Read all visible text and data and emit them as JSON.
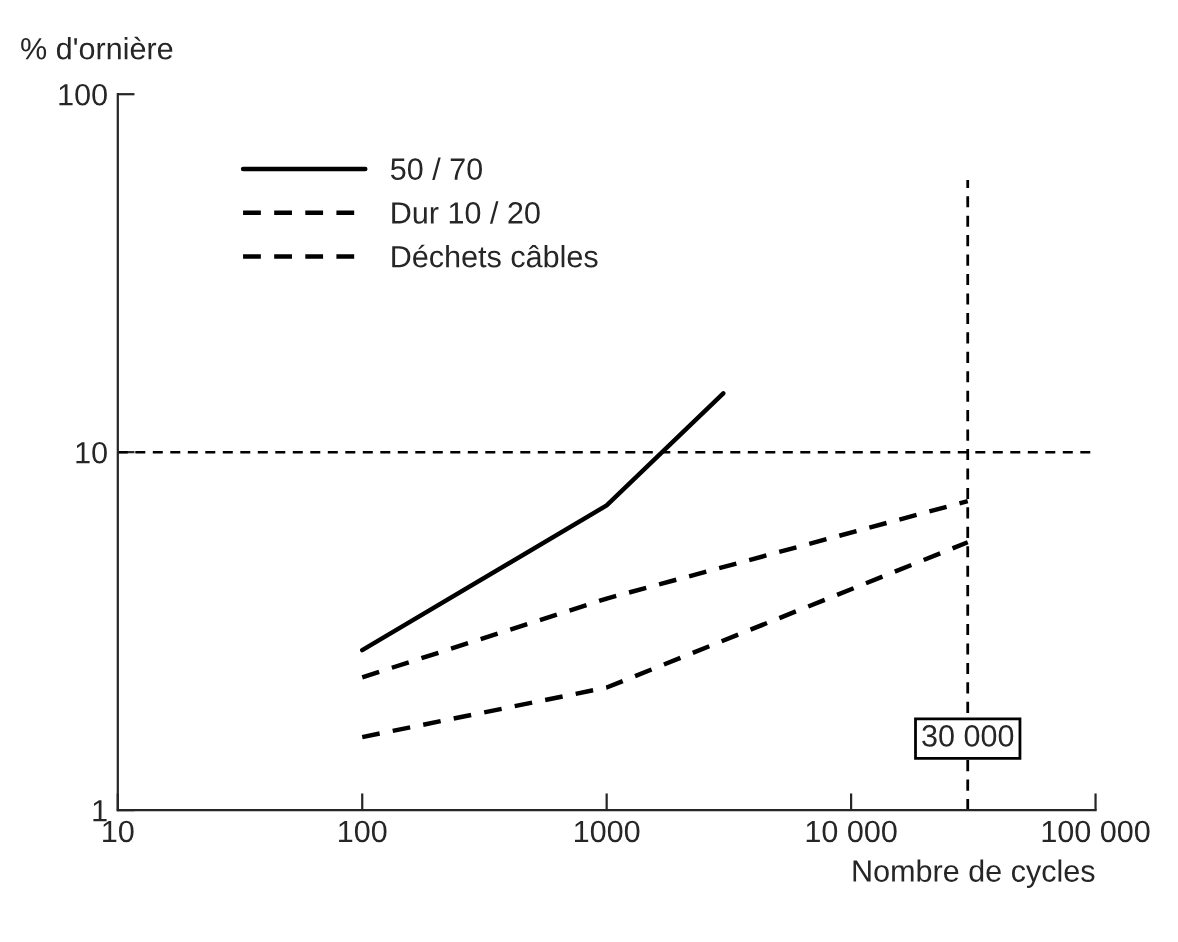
{
  "chart_data": {
    "type": "line",
    "xlabel": "Nombre de cycles",
    "ylabel": "% d'ornière",
    "log": "xy",
    "xlim": [
      10,
      100000
    ],
    "xticks": [
      10,
      100,
      1000,
      {
        "value": 10000,
        "label": "10 000"
      },
      {
        "value": 100000,
        "label": "100 000"
      }
    ],
    "ylim": [
      1,
      100
    ],
    "yticks": [
      1,
      10,
      100
    ],
    "series": [
      {
        "name": "50 / 70",
        "color": "#000000",
        "line_style": "solid",
        "x": [
          100,
          1000,
          3000
        ],
        "values": [
          2.8,
          7.1,
          14.6
        ]
      },
      {
        "name": "Dur 10 / 20",
        "color": "#000000",
        "line_style": "dashed",
        "x": [
          100,
          1000,
          30000
        ],
        "values": [
          2.35,
          3.9,
          7.3
        ]
      },
      {
        "name": "Déchets câbles",
        "color": "#000000",
        "line_style": "dashed",
        "x": [
          100,
          1000,
          30000
        ],
        "values": [
          1.6,
          2.2,
          5.6
        ]
      }
    ],
    "ref_lines": [
      {
        "axis": "y",
        "value": 10,
        "color": "#000000",
        "line_style": "dashed"
      },
      {
        "axis": "x",
        "value": 30000,
        "label": "30 000",
        "color": "#000000",
        "line_style": "dashed"
      }
    ],
    "legend": "top left",
    "grid": false,
    "marker": "none"
  }
}
